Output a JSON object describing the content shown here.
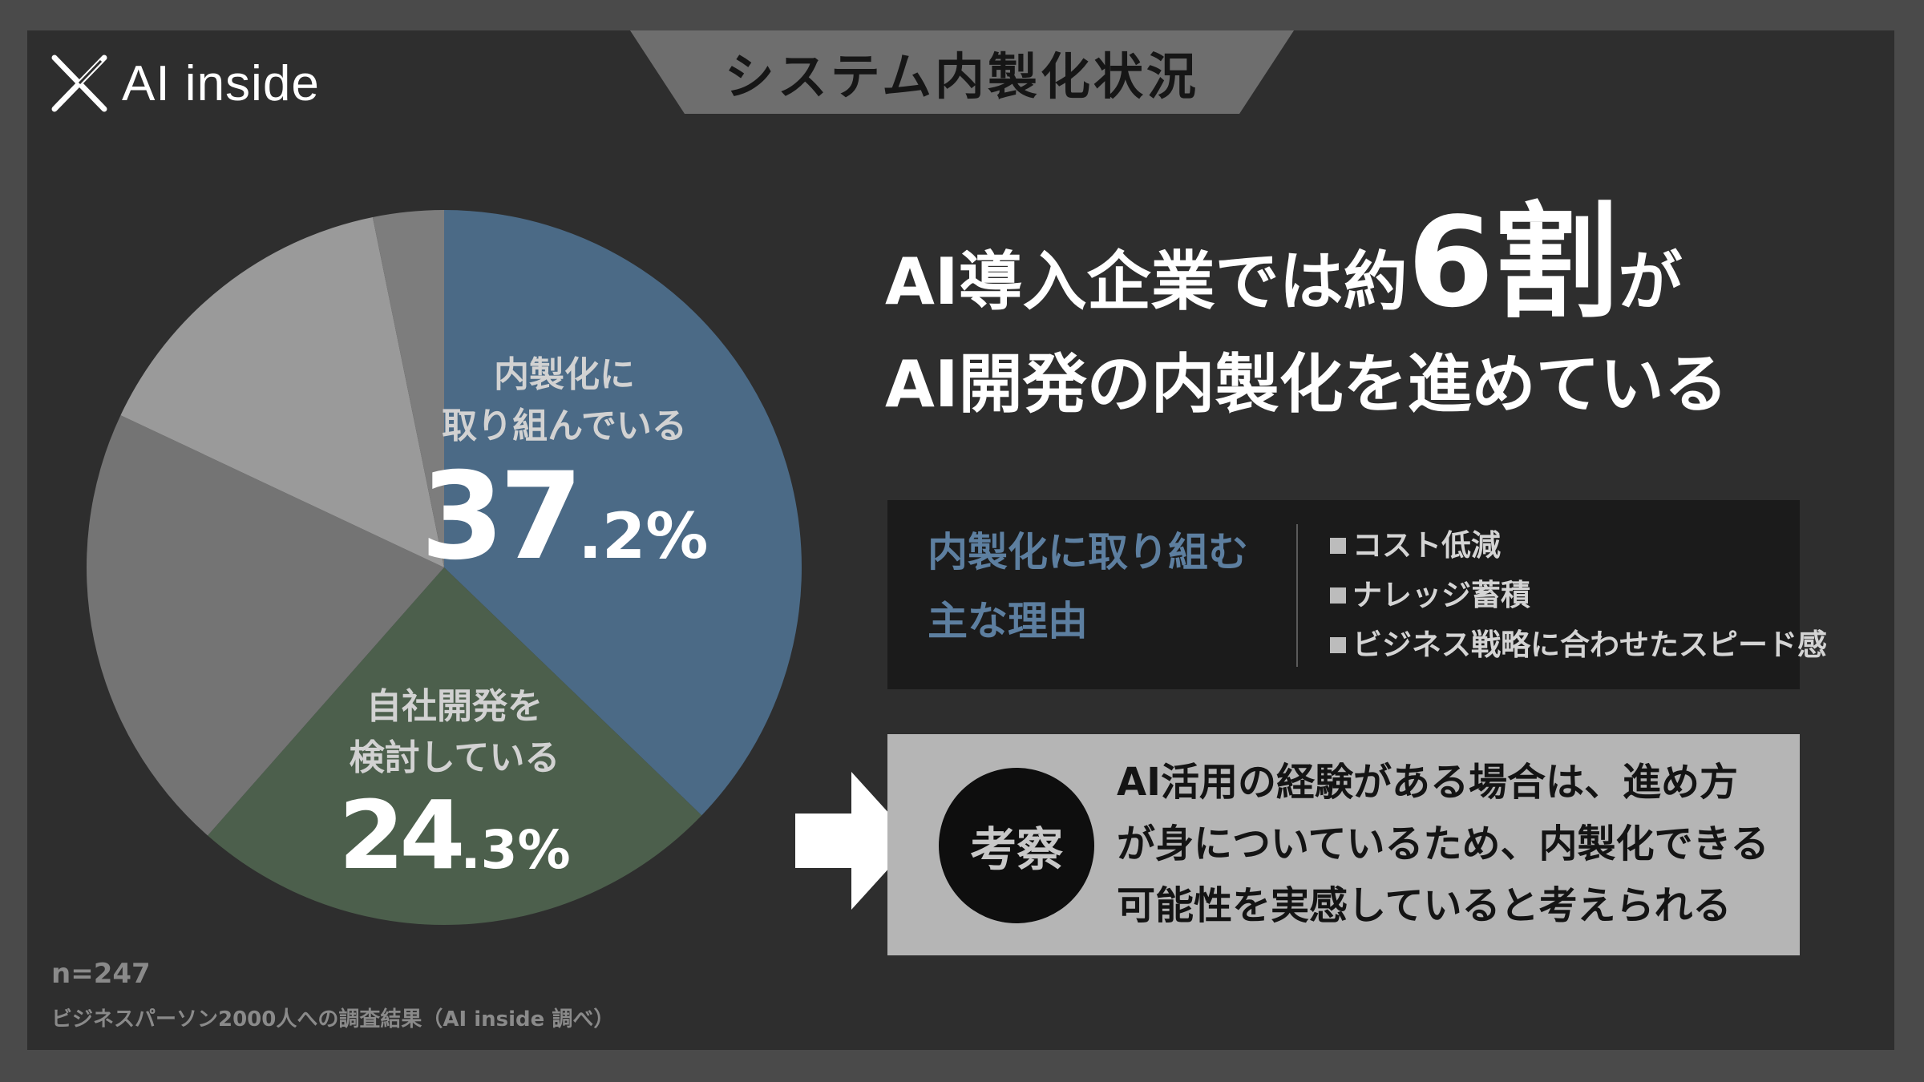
{
  "brand": {
    "logo_text": "AI inside",
    "logo_icon": "x-mark-icon"
  },
  "title_tab": "システム内製化状況",
  "headline": {
    "line1_prefix": "AI導入企業では約",
    "line1_big": "6割",
    "line1_suffix": "が",
    "line2": "AI開発の内製化を進めている"
  },
  "reasons_box": {
    "title_line1": "内製化に取り組む",
    "title_line2": "主な理由",
    "items": [
      "コスト低減",
      "ナレッジ蓄積",
      "ビジネス戦略に合わせたスピード感"
    ]
  },
  "insight": {
    "badge": "考察",
    "lines": [
      "AI活用の経験がある場合は、進め方",
      "が身についているため、内製化できる",
      "可能性を実感していると考えられる"
    ]
  },
  "sample_size": "n=247",
  "source": "ビジネスパーソン2000人への調査結果（AI inside 調べ）",
  "chart_data": {
    "type": "pie",
    "start": "12 o'clock",
    "direction": "clockwise",
    "slices": [
      {
        "label_line1": "内製化に",
        "label_line2": "取り組んでいる",
        "value": 37.2,
        "value_main": "37",
        "value_small": ".2%",
        "color": "#4b6a86"
      },
      {
        "label_line1": "自社開発を",
        "label_line2": "検討している",
        "value": 24.3,
        "value_main": "24",
        "value_small": ".3%",
        "color": "#4c5f4c"
      },
      {
        "value": 20.5,
        "color": "#747474"
      },
      {
        "value": 14.8,
        "color": "#9a9a9a"
      },
      {
        "value": 3.2,
        "color": "#7d7d7d"
      }
    ]
  },
  "colors": {
    "background": "#2e2e2e",
    "accent_blue": "#4b6a86",
    "accent_green": "#4c5f4c",
    "title_tab": "#6e6e6e",
    "insight_box": "#b5b5b5"
  }
}
